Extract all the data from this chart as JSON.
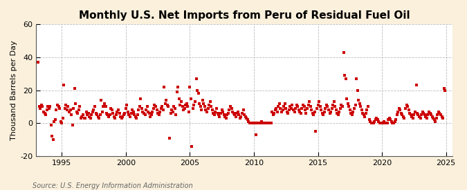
{
  "title": "Monthly U.S. Net Imports from Peru of Residual Fuel Oil",
  "ylabel": "Thousand Barrels per Day",
  "source": "Source: U.S. Energy Information Administration",
  "ylim": [
    -20,
    60
  ],
  "yticks": [
    -20,
    0,
    20,
    40,
    60
  ],
  "xlim_start": 1993.0,
  "xlim_end": 2025.5,
  "xticks": [
    1995,
    2000,
    2005,
    2010,
    2015,
    2020,
    2025
  ],
  "figure_background": "#FAF0DC",
  "plot_background": "#FFFFFF",
  "marker_color": "#CC0000",
  "marker": "s",
  "marker_size": 3.0,
  "title_fontsize": 11,
  "axis_fontsize": 8,
  "source_fontsize": 7,
  "data": [
    [
      1993.17,
      37
    ],
    [
      1993.25,
      10
    ],
    [
      1993.33,
      9
    ],
    [
      1993.42,
      11
    ],
    [
      1993.5,
      10
    ],
    [
      1993.58,
      7
    ],
    [
      1993.67,
      6
    ],
    [
      1993.75,
      5
    ],
    [
      1993.83,
      8
    ],
    [
      1993.92,
      10
    ],
    [
      1994.0,
      9
    ],
    [
      1994.08,
      10
    ],
    [
      1994.17,
      -1
    ],
    [
      1994.25,
      -8
    ],
    [
      1994.33,
      -10
    ],
    [
      1994.42,
      1
    ],
    [
      1994.5,
      2
    ],
    [
      1994.58,
      8
    ],
    [
      1994.67,
      11
    ],
    [
      1994.75,
      10
    ],
    [
      1994.83,
      9
    ],
    [
      1994.92,
      1
    ],
    [
      1995.0,
      0
    ],
    [
      1995.08,
      3
    ],
    [
      1995.17,
      23
    ],
    [
      1995.25,
      9
    ],
    [
      1995.33,
      11
    ],
    [
      1995.42,
      8
    ],
    [
      1995.5,
      10
    ],
    [
      1995.58,
      7
    ],
    [
      1995.67,
      8
    ],
    [
      1995.75,
      5
    ],
    [
      1995.83,
      -1
    ],
    [
      1995.92,
      9
    ],
    [
      1996.0,
      21
    ],
    [
      1996.08,
      12
    ],
    [
      1996.17,
      7
    ],
    [
      1996.25,
      6
    ],
    [
      1996.33,
      8
    ],
    [
      1996.42,
      10
    ],
    [
      1996.5,
      3
    ],
    [
      1996.58,
      4
    ],
    [
      1996.67,
      5
    ],
    [
      1996.75,
      3
    ],
    [
      1996.83,
      3
    ],
    [
      1996.92,
      7
    ],
    [
      1997.0,
      5
    ],
    [
      1997.08,
      6
    ],
    [
      1997.17,
      4
    ],
    [
      1997.25,
      3
    ],
    [
      1997.33,
      5
    ],
    [
      1997.42,
      7
    ],
    [
      1997.5,
      8
    ],
    [
      1997.58,
      10
    ],
    [
      1997.67,
      6
    ],
    [
      1997.75,
      5
    ],
    [
      1997.83,
      4
    ],
    [
      1997.92,
      3
    ],
    [
      1998.0,
      5
    ],
    [
      1998.08,
      14
    ],
    [
      1998.17,
      7
    ],
    [
      1998.25,
      10
    ],
    [
      1998.33,
      12
    ],
    [
      1998.42,
      10
    ],
    [
      1998.5,
      6
    ],
    [
      1998.58,
      5
    ],
    [
      1998.67,
      4
    ],
    [
      1998.75,
      5
    ],
    [
      1998.83,
      9
    ],
    [
      1998.92,
      8
    ],
    [
      1999.0,
      6
    ],
    [
      1999.08,
      4
    ],
    [
      1999.17,
      3
    ],
    [
      1999.25,
      5
    ],
    [
      1999.33,
      7
    ],
    [
      1999.42,
      8
    ],
    [
      1999.5,
      6
    ],
    [
      1999.58,
      4
    ],
    [
      1999.67,
      3
    ],
    [
      1999.75,
      4
    ],
    [
      1999.83,
      5
    ],
    [
      1999.92,
      6
    ],
    [
      2000.0,
      9
    ],
    [
      2000.08,
      11
    ],
    [
      2000.17,
      7
    ],
    [
      2000.25,
      5
    ],
    [
      2000.33,
      4
    ],
    [
      2000.42,
      6
    ],
    [
      2000.5,
      8
    ],
    [
      2000.58,
      7
    ],
    [
      2000.67,
      5
    ],
    [
      2000.75,
      4
    ],
    [
      2000.83,
      3
    ],
    [
      2000.92,
      5
    ],
    [
      2001.0,
      8
    ],
    [
      2001.08,
      10
    ],
    [
      2001.17,
      15
    ],
    [
      2001.25,
      9
    ],
    [
      2001.33,
      7
    ],
    [
      2001.42,
      6
    ],
    [
      2001.5,
      5
    ],
    [
      2001.58,
      8
    ],
    [
      2001.67,
      10
    ],
    [
      2001.75,
      7
    ],
    [
      2001.83,
      6
    ],
    [
      2001.92,
      4
    ],
    [
      2002.0,
      5
    ],
    [
      2002.08,
      7
    ],
    [
      2002.17,
      9
    ],
    [
      2002.25,
      11
    ],
    [
      2002.33,
      10
    ],
    [
      2002.42,
      8
    ],
    [
      2002.5,
      6
    ],
    [
      2002.58,
      5
    ],
    [
      2002.67,
      7
    ],
    [
      2002.75,
      9
    ],
    [
      2002.83,
      10
    ],
    [
      2002.92,
      8
    ],
    [
      2003.0,
      22
    ],
    [
      2003.08,
      12
    ],
    [
      2003.17,
      14
    ],
    [
      2003.25,
      11
    ],
    [
      2003.33,
      10
    ],
    [
      2003.42,
      -9
    ],
    [
      2003.5,
      6
    ],
    [
      2003.58,
      8
    ],
    [
      2003.67,
      7
    ],
    [
      2003.75,
      10
    ],
    [
      2003.83,
      9
    ],
    [
      2003.92,
      5
    ],
    [
      2004.0,
      19
    ],
    [
      2004.08,
      22
    ],
    [
      2004.17,
      15
    ],
    [
      2004.25,
      11
    ],
    [
      2004.33,
      13
    ],
    [
      2004.42,
      10
    ],
    [
      2004.5,
      8
    ],
    [
      2004.58,
      9
    ],
    [
      2004.67,
      11
    ],
    [
      2004.75,
      12
    ],
    [
      2004.83,
      10
    ],
    [
      2004.92,
      7
    ],
    [
      2005.0,
      22
    ],
    [
      2005.08,
      15
    ],
    [
      2005.17,
      -14
    ],
    [
      2005.25,
      9
    ],
    [
      2005.33,
      11
    ],
    [
      2005.42,
      13
    ],
    [
      2005.5,
      27
    ],
    [
      2005.58,
      20
    ],
    [
      2005.67,
      18
    ],
    [
      2005.75,
      12
    ],
    [
      2005.83,
      10
    ],
    [
      2005.92,
      8
    ],
    [
      2006.0,
      14
    ],
    [
      2006.08,
      12
    ],
    [
      2006.17,
      10
    ],
    [
      2006.25,
      8
    ],
    [
      2006.33,
      7
    ],
    [
      2006.42,
      9
    ],
    [
      2006.5,
      11
    ],
    [
      2006.58,
      13
    ],
    [
      2006.67,
      10
    ],
    [
      2006.75,
      8
    ],
    [
      2006.83,
      6
    ],
    [
      2006.92,
      5
    ],
    [
      2007.0,
      7
    ],
    [
      2007.08,
      9
    ],
    [
      2007.17,
      6
    ],
    [
      2007.25,
      5
    ],
    [
      2007.33,
      4
    ],
    [
      2007.42,
      6
    ],
    [
      2007.5,
      8
    ],
    [
      2007.58,
      7
    ],
    [
      2007.67,
      5
    ],
    [
      2007.75,
      4
    ],
    [
      2007.83,
      3
    ],
    [
      2007.92,
      5
    ],
    [
      2008.0,
      6
    ],
    [
      2008.08,
      8
    ],
    [
      2008.17,
      10
    ],
    [
      2008.25,
      9
    ],
    [
      2008.33,
      7
    ],
    [
      2008.42,
      6
    ],
    [
      2008.5,
      5
    ],
    [
      2008.58,
      4
    ],
    [
      2008.67,
      6
    ],
    [
      2008.75,
      7
    ],
    [
      2008.83,
      5
    ],
    [
      2008.92,
      3
    ],
    [
      2009.0,
      4
    ],
    [
      2009.08,
      6
    ],
    [
      2009.17,
      8
    ],
    [
      2009.25,
      5
    ],
    [
      2009.33,
      4
    ],
    [
      2009.42,
      3
    ],
    [
      2009.5,
      2
    ],
    [
      2009.58,
      1
    ],
    [
      2009.67,
      0
    ],
    [
      2009.75,
      0
    ],
    [
      2009.83,
      0
    ],
    [
      2009.92,
      0
    ],
    [
      2010.0,
      0
    ],
    [
      2010.08,
      0
    ],
    [
      2010.17,
      -7
    ],
    [
      2010.25,
      0
    ],
    [
      2010.33,
      0
    ],
    [
      2010.42,
      0
    ],
    [
      2010.5,
      0
    ],
    [
      2010.58,
      1
    ],
    [
      2010.67,
      0
    ],
    [
      2010.75,
      0
    ],
    [
      2010.83,
      0
    ],
    [
      2010.92,
      0
    ],
    [
      2011.0,
      0
    ],
    [
      2011.08,
      0
    ],
    [
      2011.17,
      0
    ],
    [
      2011.25,
      0
    ],
    [
      2011.33,
      0
    ],
    [
      2011.42,
      7
    ],
    [
      2011.5,
      5
    ],
    [
      2011.58,
      6
    ],
    [
      2011.67,
      8
    ],
    [
      2011.75,
      9
    ],
    [
      2011.83,
      7
    ],
    [
      2011.92,
      10
    ],
    [
      2012.0,
      12
    ],
    [
      2012.08,
      9
    ],
    [
      2012.17,
      7
    ],
    [
      2012.25,
      8
    ],
    [
      2012.33,
      10
    ],
    [
      2012.42,
      12
    ],
    [
      2012.5,
      9
    ],
    [
      2012.58,
      7
    ],
    [
      2012.67,
      6
    ],
    [
      2012.75,
      8
    ],
    [
      2012.83,
      10
    ],
    [
      2012.92,
      9
    ],
    [
      2013.0,
      11
    ],
    [
      2013.08,
      8
    ],
    [
      2013.17,
      7
    ],
    [
      2013.25,
      9
    ],
    [
      2013.33,
      11
    ],
    [
      2013.42,
      10
    ],
    [
      2013.5,
      8
    ],
    [
      2013.58,
      7
    ],
    [
      2013.67,
      6
    ],
    [
      2013.75,
      9
    ],
    [
      2013.83,
      11
    ],
    [
      2013.92,
      10
    ],
    [
      2014.0,
      8
    ],
    [
      2014.08,
      6
    ],
    [
      2014.17,
      9
    ],
    [
      2014.25,
      11
    ],
    [
      2014.33,
      13
    ],
    [
      2014.42,
      10
    ],
    [
      2014.5,
      8
    ],
    [
      2014.58,
      6
    ],
    [
      2014.67,
      5
    ],
    [
      2014.75,
      7
    ],
    [
      2014.83,
      -5
    ],
    [
      2014.92,
      9
    ],
    [
      2015.0,
      11
    ],
    [
      2015.08,
      13
    ],
    [
      2015.17,
      10
    ],
    [
      2015.25,
      8
    ],
    [
      2015.33,
      6
    ],
    [
      2015.42,
      5
    ],
    [
      2015.5,
      7
    ],
    [
      2015.58,
      9
    ],
    [
      2015.67,
      11
    ],
    [
      2015.75,
      10
    ],
    [
      2015.83,
      8
    ],
    [
      2015.92,
      6
    ],
    [
      2016.0,
      7
    ],
    [
      2016.08,
      9
    ],
    [
      2016.17,
      11
    ],
    [
      2016.25,
      13
    ],
    [
      2016.33,
      10
    ],
    [
      2016.42,
      8
    ],
    [
      2016.5,
      6
    ],
    [
      2016.58,
      5
    ],
    [
      2016.67,
      7
    ],
    [
      2016.75,
      9
    ],
    [
      2016.83,
      11
    ],
    [
      2016.92,
      10
    ],
    [
      2017.0,
      43
    ],
    [
      2017.08,
      29
    ],
    [
      2017.17,
      27
    ],
    [
      2017.25,
      15
    ],
    [
      2017.33,
      12
    ],
    [
      2017.42,
      10
    ],
    [
      2017.5,
      8
    ],
    [
      2017.58,
      6
    ],
    [
      2017.67,
      5
    ],
    [
      2017.75,
      7
    ],
    [
      2017.83,
      9
    ],
    [
      2017.92,
      11
    ],
    [
      2018.0,
      27
    ],
    [
      2018.08,
      20
    ],
    [
      2018.17,
      14
    ],
    [
      2018.25,
      12
    ],
    [
      2018.33,
      10
    ],
    [
      2018.42,
      8
    ],
    [
      2018.5,
      6
    ],
    [
      2018.58,
      5
    ],
    [
      2018.67,
      4
    ],
    [
      2018.75,
      6
    ],
    [
      2018.83,
      8
    ],
    [
      2018.92,
      10
    ],
    [
      2019.0,
      2
    ],
    [
      2019.08,
      1
    ],
    [
      2019.17,
      0
    ],
    [
      2019.25,
      0
    ],
    [
      2019.33,
      0
    ],
    [
      2019.42,
      1
    ],
    [
      2019.5,
      2
    ],
    [
      2019.58,
      3
    ],
    [
      2019.67,
      2
    ],
    [
      2019.75,
      1
    ],
    [
      2019.83,
      0
    ],
    [
      2019.92,
      0
    ],
    [
      2020.0,
      0
    ],
    [
      2020.08,
      0
    ],
    [
      2020.17,
      1
    ],
    [
      2020.25,
      0
    ],
    [
      2020.33,
      0
    ],
    [
      2020.42,
      0
    ],
    [
      2020.5,
      2
    ],
    [
      2020.58,
      3
    ],
    [
      2020.67,
      2
    ],
    [
      2020.75,
      1
    ],
    [
      2020.83,
      0
    ],
    [
      2020.92,
      0
    ],
    [
      2021.0,
      1
    ],
    [
      2021.08,
      2
    ],
    [
      2021.17,
      5
    ],
    [
      2021.25,
      7
    ],
    [
      2021.33,
      9
    ],
    [
      2021.42,
      8
    ],
    [
      2021.5,
      6
    ],
    [
      2021.58,
      5
    ],
    [
      2021.67,
      4
    ],
    [
      2021.75,
      3
    ],
    [
      2021.83,
      9
    ],
    [
      2021.92,
      11
    ],
    [
      2022.0,
      10
    ],
    [
      2022.08,
      8
    ],
    [
      2022.17,
      6
    ],
    [
      2022.25,
      5
    ],
    [
      2022.33,
      4
    ],
    [
      2022.42,
      3
    ],
    [
      2022.5,
      5
    ],
    [
      2022.58,
      7
    ],
    [
      2022.67,
      23
    ],
    [
      2022.75,
      6
    ],
    [
      2022.83,
      5
    ],
    [
      2022.92,
      4
    ],
    [
      2023.0,
      3
    ],
    [
      2023.08,
      5
    ],
    [
      2023.17,
      7
    ],
    [
      2023.25,
      6
    ],
    [
      2023.33,
      5
    ],
    [
      2023.42,
      4
    ],
    [
      2023.5,
      3
    ],
    [
      2023.58,
      5
    ],
    [
      2023.67,
      7
    ],
    [
      2023.75,
      6
    ],
    [
      2023.83,
      5
    ],
    [
      2023.92,
      4
    ],
    [
      2024.0,
      3
    ],
    [
      2024.08,
      2
    ],
    [
      2024.17,
      1
    ],
    [
      2024.25,
      3
    ],
    [
      2024.33,
      5
    ],
    [
      2024.42,
      7
    ],
    [
      2024.5,
      6
    ],
    [
      2024.58,
      5
    ],
    [
      2024.67,
      4
    ],
    [
      2024.75,
      3
    ],
    [
      2024.83,
      21
    ],
    [
      2024.92,
      20
    ]
  ]
}
